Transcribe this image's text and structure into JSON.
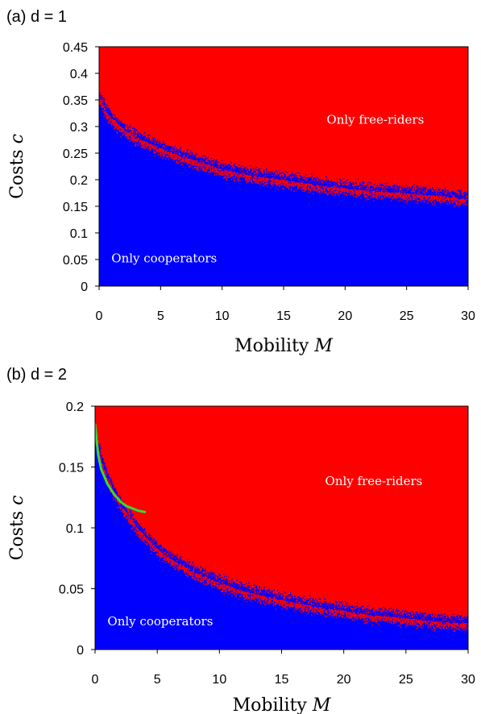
{
  "chart_data": [
    {
      "type": "heatmap",
      "panel_label": "(a) d = 1",
      "xlabel": "Mobility",
      "xlabel_symbol": "M",
      "ylabel": "Costs",
      "ylabel_symbol": "c",
      "xlim": [
        0,
        30
      ],
      "ylim": [
        0,
        0.45
      ],
      "x_ticks": [
        "0",
        "5",
        "10",
        "15",
        "20",
        "25",
        "30"
      ],
      "y_ticks": [
        "0",
        "0.05",
        "0.1",
        "0.15",
        "0.2",
        "0.25",
        "0.3",
        "0.35",
        "0.4",
        "0.45"
      ],
      "regions": [
        {
          "label": "Only free-riders",
          "color": "#ff0000",
          "label_at": [
            18.5,
            0.305
          ]
        },
        {
          "label": "Only cooperators",
          "color": "#0000ff",
          "label_at": [
            1.0,
            0.045
          ]
        }
      ],
      "boundary": {
        "x": [
          0,
          0.5,
          1,
          2,
          3,
          4,
          5,
          6,
          8,
          10,
          12,
          15,
          18,
          20,
          22,
          25,
          28,
          30
        ],
        "y": [
          0.355,
          0.33,
          0.315,
          0.295,
          0.28,
          0.27,
          0.26,
          0.25,
          0.235,
          0.22,
          0.21,
          0.2,
          0.19,
          0.185,
          0.18,
          0.175,
          0.17,
          0.165
        ]
      },
      "grid": false
    },
    {
      "type": "heatmap",
      "panel_label": "(b) d = 2",
      "xlabel": "Mobility",
      "xlabel_symbol": "M",
      "ylabel": "Costs",
      "ylabel_symbol": "c",
      "xlim": [
        0,
        30
      ],
      "ylim": [
        0,
        0.2
      ],
      "x_ticks": [
        "0",
        "5",
        "10",
        "15",
        "20",
        "25",
        "30"
      ],
      "y_ticks": [
        "0",
        "0.05",
        "0.1",
        "0.15",
        "0.2"
      ],
      "regions": [
        {
          "label": "Only free-riders",
          "color": "#ff0000",
          "label_at": [
            18.5,
            0.135
          ]
        },
        {
          "label": "Only cooperators",
          "color": "#0000ff",
          "label_at": [
            1.0,
            0.02
          ]
        }
      ],
      "boundary": {
        "x": [
          0,
          0.5,
          1,
          1.5,
          2,
          3,
          4,
          5,
          6,
          8,
          10,
          12,
          15,
          18,
          20,
          22,
          25,
          28,
          30
        ],
        "y": [
          0.175,
          0.155,
          0.14,
          0.13,
          0.12,
          0.105,
          0.093,
          0.083,
          0.075,
          0.064,
          0.055,
          0.048,
          0.041,
          0.035,
          0.032,
          0.029,
          0.026,
          0.023,
          0.022
        ]
      },
      "line": {
        "color": "#33dd33",
        "x": [
          0,
          0.25,
          0.5,
          1,
          1.5,
          2,
          2.5,
          3,
          3.5,
          4
        ],
        "y": [
          0.185,
          0.16,
          0.148,
          0.136,
          0.128,
          0.122,
          0.118,
          0.116,
          0.114,
          0.113
        ]
      },
      "grid": false
    }
  ]
}
